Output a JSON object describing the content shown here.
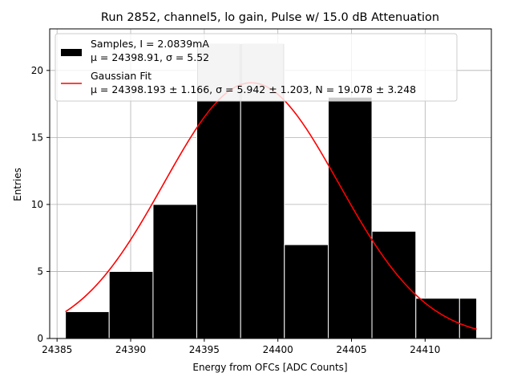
{
  "chart_data": {
    "type": "bar",
    "title": "Run 2852, channel5, lo gain, Pulse w/ 15.0 dB Attenuation",
    "xlabel": "Energy from OFCs [ADC Counts]",
    "ylabel": "Entries",
    "xlim": [
      24384.5,
      24414.5
    ],
    "ylim": [
      0,
      23.1
    ],
    "xticks": [
      24385,
      24390,
      24395,
      24400,
      24405,
      24410
    ],
    "xtick_labels": [
      "24385",
      "24390",
      "24395",
      "24400",
      "24405",
      "24410"
    ],
    "yticks": [
      0,
      5,
      10,
      15,
      20
    ],
    "ytick_labels": [
      "0",
      "5",
      "10",
      "15",
      "20"
    ],
    "grid": true,
    "legend_position": "upper-left",
    "histogram": {
      "bin_edges": [
        24385.57,
        24388.54,
        24391.52,
        24394.49,
        24397.47,
        24400.44,
        24403.42,
        24406.39,
        24409.37,
        24412.34,
        24413.5
      ],
      "bins": [
        {
          "start": 24385.57,
          "end": 24388.54,
          "value": 2
        },
        {
          "start": 24388.54,
          "end": 24391.52,
          "value": 5
        },
        {
          "start": 24391.52,
          "end": 24394.49,
          "value": 10
        },
        {
          "start": 24394.49,
          "end": 24397.47,
          "value": 22
        },
        {
          "start": 24397.47,
          "end": 24400.44,
          "value": 22
        },
        {
          "start": 24400.44,
          "end": 24403.42,
          "value": 7
        },
        {
          "start": 24403.42,
          "end": 24406.39,
          "value": 18
        },
        {
          "start": 24406.39,
          "end": 24409.37,
          "value": 8
        },
        {
          "start": 24409.37,
          "end": 24412.34,
          "value": 3
        },
        {
          "start": 24412.34,
          "end": 24413.5,
          "value": 3
        }
      ],
      "color": "#000000",
      "edge_color": "#ffffff",
      "highlight_color": "#c8c8c8"
    },
    "fit": {
      "mu": 24398.193,
      "sigma": 5.942,
      "N": 19.078,
      "x_range": [
        24385.57,
        24413.5
      ],
      "color": "#ff0000"
    },
    "legend": [
      {
        "line1": "Samples, I = 2.0839mA",
        "line2": "μ = 24398.91, σ = 5.52"
      },
      {
        "line1": "Gaussian Fit",
        "line2": "μ = 24398.193 ± 1.166, σ = 5.942 ± 1.203, N = 19.078 ± 3.248"
      }
    ]
  }
}
